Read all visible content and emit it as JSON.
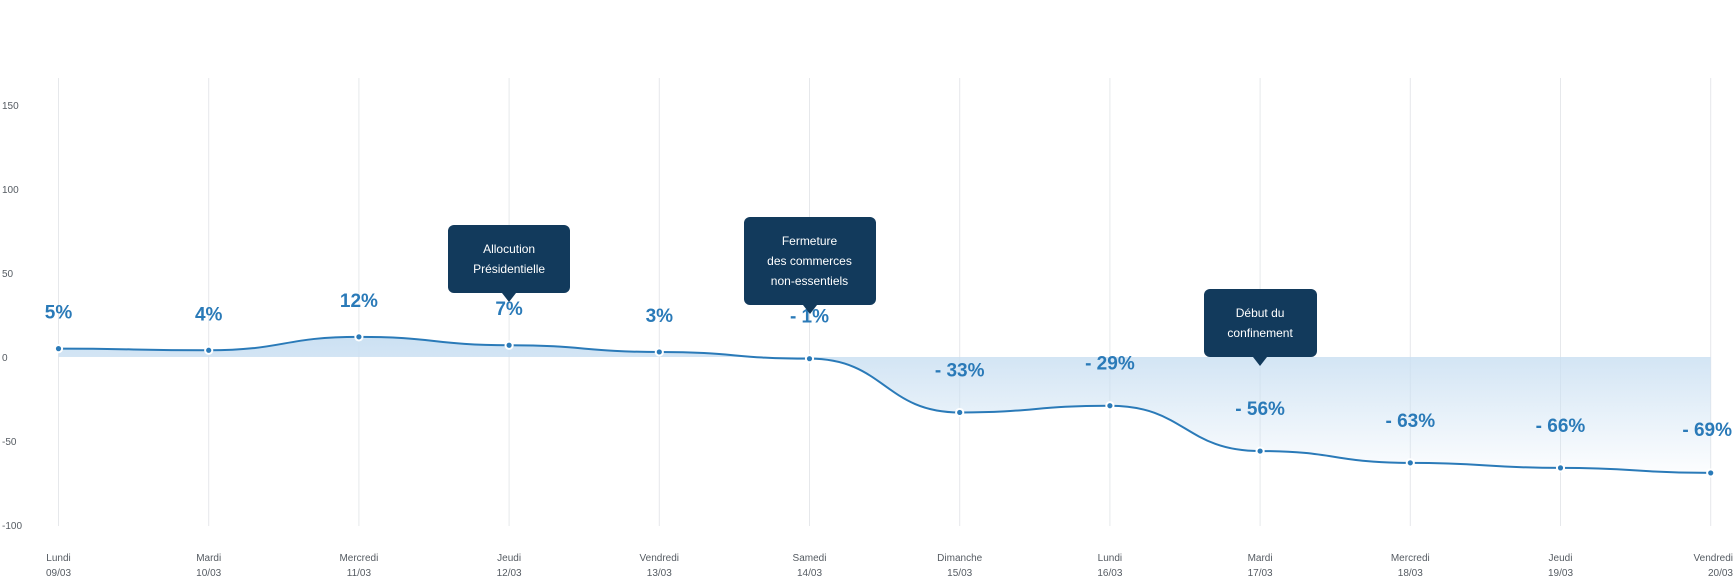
{
  "chart_data": {
    "type": "area",
    "categories": [
      {
        "day": "Lundi",
        "date": "09/03"
      },
      {
        "day": "Mardi",
        "date": "10/03"
      },
      {
        "day": "Mercredi",
        "date": "11/03"
      },
      {
        "day": "Jeudi",
        "date": "12/03"
      },
      {
        "day": "Vendredi",
        "date": "13/03"
      },
      {
        "day": "Samedi",
        "date": "14/03"
      },
      {
        "day": "Dimanche",
        "date": "15/03"
      },
      {
        "day": "Lundi",
        "date": "16/03"
      },
      {
        "day": "Mardi",
        "date": "17/03"
      },
      {
        "day": "Mercredi",
        "date": "18/03"
      },
      {
        "day": "Jeudi",
        "date": "19/03"
      },
      {
        "day": "Vendredi",
        "date": "20/03"
      }
    ],
    "values": [
      5,
      4,
      12,
      7,
      3,
      -1,
      -33,
      -29,
      -56,
      -63,
      -66,
      -69
    ],
    "data_labels": [
      "5%",
      "4%",
      "12%",
      "7%",
      "3%",
      "- 1%",
      "- 33%",
      "- 29%",
      "- 56%",
      "- 63%",
      "- 66%",
      "- 69%"
    ],
    "yticks": [
      150,
      100,
      50,
      0,
      -50,
      -100
    ],
    "ylim": [
      -100,
      150
    ],
    "grid": "vertical",
    "colors": {
      "line": "#2a7ab8",
      "fill": "#c9dff2",
      "label": "#2a7ab8",
      "callout": "#123a5c",
      "grid": "#e6e8eb",
      "tick": "#555b62"
    },
    "annotations": [
      {
        "index": 3,
        "lines": [
          "Allocution",
          "Présidentielle"
        ]
      },
      {
        "index": 5,
        "lines": [
          "Fermeture",
          "des commerces",
          "non-essentiels"
        ]
      },
      {
        "index": 8,
        "lines": [
          "Début du",
          "confinement"
        ]
      }
    ]
  }
}
